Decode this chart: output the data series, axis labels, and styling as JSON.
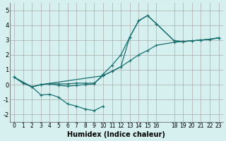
{
  "xlabel": "Humidex (Indice chaleur)",
  "ylabel": "",
  "background_color": "#d6f0f0",
  "grid_color": "#aaaaaa",
  "line_color": "#1a7070",
  "xlim": [
    -0.5,
    23.5
  ],
  "ylim": [
    -2.5,
    5.5
  ],
  "xticks": [
    0,
    1,
    2,
    3,
    4,
    5,
    6,
    7,
    8,
    9,
    10,
    11,
    12,
    13,
    14,
    15,
    16,
    18,
    19,
    20,
    21,
    22,
    23
  ],
  "yticks": [
    -2,
    -1,
    0,
    1,
    2,
    3,
    4,
    5
  ],
  "series1_x": [
    0,
    1,
    2,
    3,
    4,
    5,
    6,
    7,
    8,
    9,
    10,
    11,
    12,
    13,
    14,
    15,
    16,
    18,
    19,
    20,
    21,
    22,
    23
  ],
  "series1_y": [
    0.5,
    0.1,
    -0.15,
    0.0,
    0.05,
    0.05,
    0.05,
    0.1,
    0.1,
    0.1,
    0.6,
    0.9,
    1.2,
    1.6,
    2.0,
    2.3,
    2.65,
    2.85,
    2.9,
    2.95,
    3.0,
    3.05,
    3.15
  ],
  "series2_x": [
    0,
    1,
    2,
    3,
    4,
    5,
    6,
    7,
    8,
    9,
    10,
    11,
    12,
    13,
    14,
    15,
    16,
    18,
    19,
    20,
    21,
    22,
    23
  ],
  "series2_y": [
    0.5,
    0.1,
    -0.15,
    0.0,
    0.05,
    -0.05,
    -0.1,
    -0.05,
    0.0,
    0.05,
    0.7,
    1.3,
    2.0,
    3.2,
    4.3,
    4.65,
    4.1,
    2.95,
    2.9,
    2.95,
    3.0,
    3.05,
    3.15
  ],
  "series3_x": [
    0,
    2,
    3,
    10,
    11,
    12,
    13,
    14,
    15,
    16,
    18,
    19,
    20,
    21,
    22,
    23
  ],
  "series3_y": [
    0.5,
    -0.15,
    0.0,
    0.6,
    0.9,
    1.2,
    3.2,
    4.3,
    4.65,
    4.1,
    2.95,
    2.9,
    2.95,
    3.0,
    3.05,
    3.15
  ],
  "series4_x": [
    2,
    3,
    4,
    5,
    6,
    7,
    8,
    9,
    10
  ],
  "series4_y": [
    -0.15,
    -0.7,
    -0.65,
    -0.85,
    -1.3,
    -1.45,
    -1.65,
    -1.75,
    -1.45
  ],
  "marker_size": 3
}
